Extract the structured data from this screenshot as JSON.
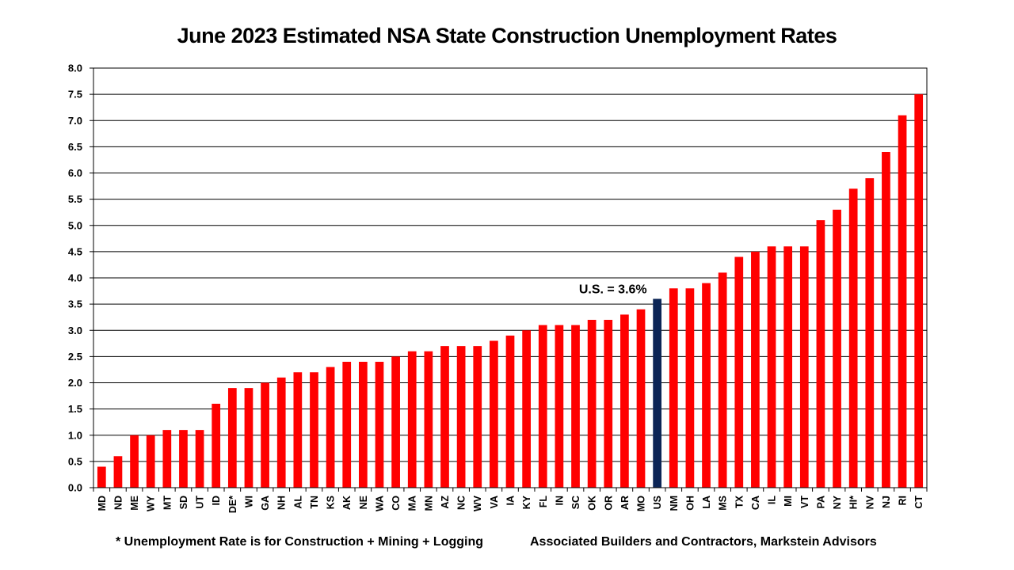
{
  "chart_data": {
    "type": "bar",
    "title": "June 2023 Estimated NSA State Construction Unemployment Rates",
    "xlabel": "",
    "ylabel": "",
    "ylim": [
      0,
      8
    ],
    "yticks": [
      "0.0",
      "0.5",
      "1.0",
      "1.5",
      "2.0",
      "2.5",
      "3.0",
      "3.5",
      "4.0",
      "4.5",
      "5.0",
      "5.5",
      "6.0",
      "6.5",
      "7.0",
      "7.5",
      "8.0"
    ],
    "grid": true,
    "categories": [
      "MD",
      "ND",
      "ME",
      "WY",
      "MT",
      "SD",
      "UT",
      "ID",
      "DE*",
      "WI",
      "GA",
      "NH",
      "AL",
      "TN",
      "KS",
      "AK",
      "NE",
      "WA",
      "CO",
      "MA",
      "MN",
      "AZ",
      "NC",
      "WV",
      "VA",
      "IA",
      "KY",
      "FL",
      "IN",
      "SC",
      "OK",
      "OR",
      "AR",
      "MO",
      "US",
      "NM",
      "OH",
      "LA",
      "MS",
      "TX",
      "CA",
      "IL",
      "MI",
      "VT",
      "PA",
      "NY",
      "HI*",
      "NV",
      "NJ",
      "RI",
      "CT"
    ],
    "values": [
      0.4,
      0.6,
      1.0,
      1.0,
      1.1,
      1.1,
      1.1,
      1.6,
      1.9,
      1.9,
      2.0,
      2.1,
      2.2,
      2.2,
      2.3,
      2.4,
      2.4,
      2.4,
      2.5,
      2.6,
      2.6,
      2.7,
      2.7,
      2.7,
      2.8,
      2.9,
      3.0,
      3.1,
      3.1,
      3.1,
      3.2,
      3.2,
      3.3,
      3.4,
      3.6,
      3.8,
      3.8,
      3.9,
      4.1,
      4.4,
      4.5,
      4.6,
      4.6,
      4.6,
      5.1,
      5.3,
      5.7,
      5.9,
      6.4,
      7.1,
      7.5
    ],
    "highlight_category": "US",
    "annotation": "U.S. = 3.6%",
    "colors": {
      "bar": "#ff0000",
      "highlight": "#0c2556",
      "grid": "#000000"
    }
  },
  "footnotes": {
    "left": "* Unemployment Rate is for Construction + Mining + Logging",
    "right": "Associated Builders and Contractors, Markstein Advisors"
  }
}
